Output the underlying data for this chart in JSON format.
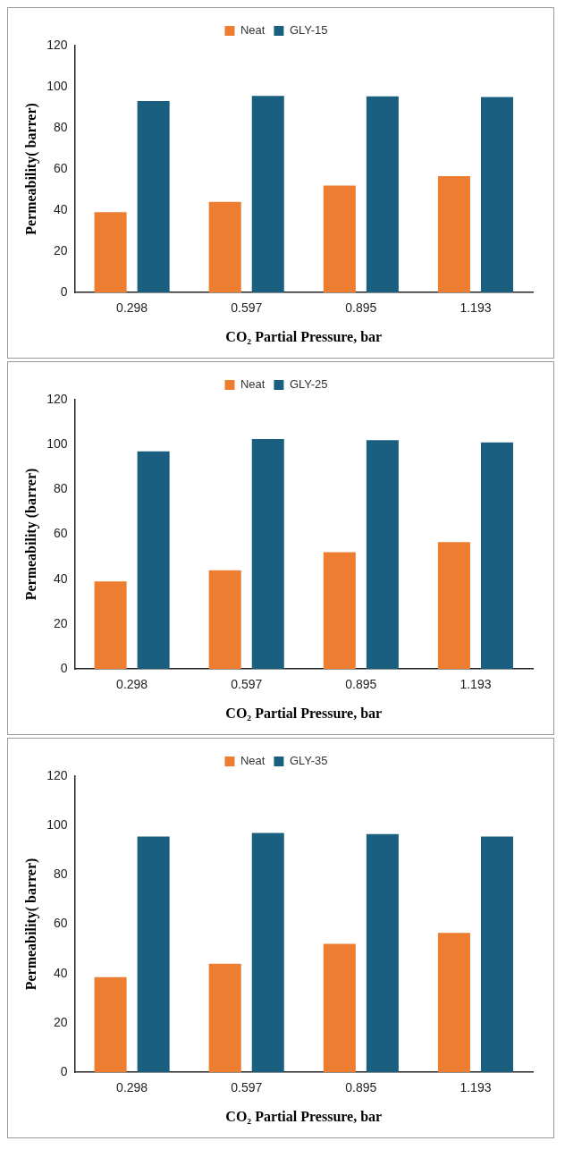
{
  "chart_data": [
    {
      "type": "bar",
      "categories": [
        "0.298",
        "0.597",
        "0.895",
        "1.193"
      ],
      "xlabel": "CO₂ Partial Pressure, bar",
      "ylabel": "Permeability( barrer)",
      "ylim": [
        0,
        120
      ],
      "yticks": [
        0,
        20,
        40,
        60,
        80,
        100,
        120
      ],
      "legend": "top",
      "series": [
        {
          "name": "Neat",
          "color": "#ed7d31",
          "values": [
            39,
            44,
            52,
            56.5
          ]
        },
        {
          "name": "GLY-15",
          "color": "#1a5f7f",
          "values": [
            93,
            95.5,
            95.3,
            95
          ]
        }
      ]
    },
    {
      "type": "bar",
      "categories": [
        "0.298",
        "0.597",
        "0.895",
        "1.193"
      ],
      "xlabel": "CO₂ Partial Pressure, bar",
      "ylabel": "Permeability (barrer)",
      "ylim": [
        0,
        120
      ],
      "yticks": [
        0,
        20,
        40,
        60,
        80,
        100,
        120
      ],
      "legend": "top",
      "series": [
        {
          "name": "Neat",
          "color": "#ed7d31",
          "values": [
            39,
            44,
            52,
            56.5
          ]
        },
        {
          "name": "GLY-25",
          "color": "#1a5f7f",
          "values": [
            97,
            102.5,
            102,
            101
          ]
        }
      ]
    },
    {
      "type": "bar",
      "categories": [
        "0.298",
        "0.597",
        "0.895",
        "1.193"
      ],
      "xlabel": "CO₂ Partial Pressure, bar",
      "ylabel": "Permeability( barrer)",
      "ylim": [
        0,
        120
      ],
      "yticks": [
        0,
        20,
        40,
        60,
        80,
        100,
        120
      ],
      "legend": "top",
      "series": [
        {
          "name": "Neat",
          "color": "#ed7d31",
          "values": [
            38.5,
            44,
            52,
            56.5
          ]
        },
        {
          "name": "GLY-35",
          "color": "#1a5f7f",
          "values": [
            95.5,
            97,
            96.5,
            95.5
          ]
        }
      ]
    }
  ]
}
